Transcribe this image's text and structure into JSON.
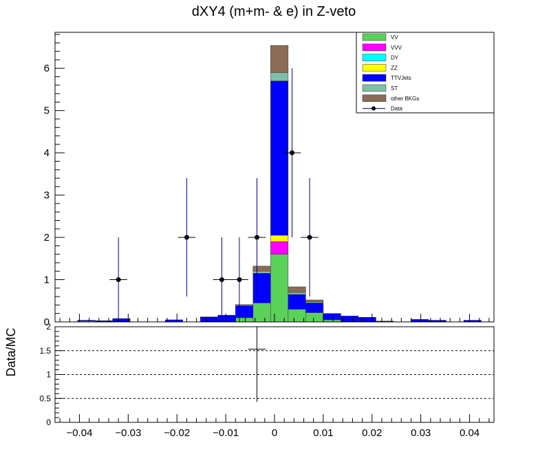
{
  "chart_data": [
    {
      "type": "bar",
      "stacked": true,
      "title": "dXY4 (m+m- & e) in Z-veto",
      "xlabel": "",
      "ylabel": "",
      "xlim": [
        -0.045,
        0.045
      ],
      "ylim": [
        0,
        6.85
      ],
      "x_ticks": [
        -0.04,
        -0.03,
        -0.02,
        -0.01,
        0,
        0.01,
        0.02,
        0.03,
        0.04
      ],
      "x_tick_labels": [
        "−0.04",
        "−0.03",
        "−0.02",
        "−0.01",
        "0",
        "0.01",
        "0.02",
        "0.03",
        "0.04"
      ],
      "y_ticks": [
        0,
        1,
        2,
        3,
        4,
        5,
        6
      ],
      "y_tick_labels": [
        "0",
        "1",
        "2",
        "3",
        "4",
        "5",
        "6"
      ],
      "bin_edges": [
        -0.044,
        -0.0404,
        -0.0368,
        -0.0332,
        -0.0296,
        -0.026,
        -0.0224,
        -0.0188,
        -0.0152,
        -0.0116,
        -0.008,
        -0.0044,
        -0.0008,
        0.0028,
        0.0064,
        0.01,
        0.0136,
        0.0172,
        0.0208,
        0.0244,
        0.028,
        0.0316,
        0.0352,
        0.0388,
        0.0424,
        0.046
      ],
      "series": [
        {
          "name": "VV",
          "color": "#5ad25a",
          "values": [
            0,
            0.02,
            0,
            0,
            0,
            0,
            0.01,
            0,
            0,
            0,
            0.1,
            0.45,
            1.6,
            0.3,
            0.22,
            0.05,
            0,
            0,
            0,
            0,
            0,
            0,
            0,
            0,
            0
          ]
        },
        {
          "name": "VVV",
          "color": "#ff00ff",
          "values": [
            0,
            0,
            0,
            0,
            0,
            0,
            0,
            0,
            0,
            0,
            0,
            0,
            0.3,
            0,
            0,
            0,
            0,
            0,
            0,
            0,
            0,
            0,
            0,
            0,
            0
          ]
        },
        {
          "name": "DY",
          "color": "#00ffff",
          "values": [
            0,
            0,
            0,
            0,
            0,
            0,
            0,
            0,
            0,
            0,
            0,
            0,
            0,
            0,
            0,
            0,
            0,
            0,
            0,
            0,
            0,
            0,
            0,
            0,
            0
          ]
        },
        {
          "name": "ZZ",
          "color": "#ffff00",
          "values": [
            0,
            0,
            0,
            0,
            0,
            0,
            0,
            0,
            0,
            0,
            0,
            0,
            0.15,
            0,
            0,
            0,
            0,
            0,
            0,
            0,
            0,
            0,
            0,
            0,
            0
          ]
        },
        {
          "name": "TTVJets",
          "color": "#0000ff",
          "values": [
            0,
            0.02,
            0.03,
            0.08,
            0,
            0,
            0.04,
            0,
            0.12,
            0.16,
            0.28,
            0.7,
            3.65,
            0.35,
            0.23,
            0.15,
            0.14,
            0.11,
            0.02,
            0,
            0.06,
            0.04,
            0,
            0.04,
            0
          ]
        },
        {
          "name": "ST",
          "color": "#7fbfa6",
          "values": [
            0,
            0,
            0,
            0,
            0,
            0,
            0,
            0,
            0,
            0,
            0,
            0.05,
            0.2,
            0.05,
            0.03,
            0,
            0,
            0,
            0,
            0,
            0,
            0,
            0,
            0,
            0
          ]
        },
        {
          "name": "other BKGs",
          "color": "#8b6b55",
          "values": [
            0,
            0,
            0,
            0,
            0,
            0,
            0,
            0,
            0,
            0,
            0.03,
            0.12,
            0.64,
            0.13,
            0.04,
            0,
            0,
            0,
            0,
            0,
            0,
            0,
            0,
            0,
            0
          ]
        }
      ],
      "data_points": {
        "name": "Data",
        "x": [
          -0.032,
          -0.018,
          -0.0108,
          -0.0072,
          -0.0036,
          0.0036,
          0.0072
        ],
        "y": [
          1,
          2,
          1,
          1,
          2,
          4,
          2
        ],
        "y_err_low": [
          1,
          1.4,
          1,
          1,
          1.4,
          2,
          1.4
        ],
        "y_err_high": [
          1,
          1.4,
          1,
          1,
          1.4,
          2,
          1.4
        ],
        "x_err": [
          0.0018,
          0.0018,
          0.0018,
          0.0018,
          0.0018,
          0.0018,
          0.0018
        ]
      },
      "legend": {
        "position": "top-right",
        "entries": [
          "VV",
          "VVV",
          "DY",
          "ZZ",
          "TTVJets",
          "ST",
          "other BKGs",
          "Data"
        ]
      }
    },
    {
      "type": "scatter",
      "ylabel": "Data/MC",
      "xlim": [
        -0.045,
        0.045
      ],
      "ylim": [
        0,
        2
      ],
      "y_ticks": [
        0,
        0.5,
        1,
        1.5,
        2
      ],
      "y_tick_labels": [
        "0",
        "0.5",
        "1",
        "1.5",
        "2"
      ],
      "reference_lines": [
        0.5,
        1,
        1.5
      ],
      "points": [
        {
          "x": -0.0036,
          "y": 1.53,
          "y_err_low": 1.1,
          "y_err_high": 0.5,
          "x_err": 0.0018
        }
      ]
    }
  ]
}
